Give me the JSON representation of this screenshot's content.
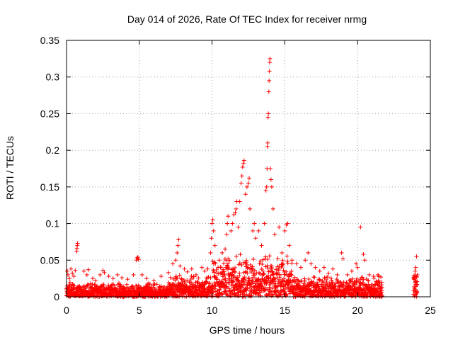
{
  "chart_data": {
    "type": "scatter",
    "title": "Day 014 of 2026, Rate Of TEC Index for receiver nrmg",
    "xlabel": "GPS time / hours",
    "ylabel": "ROTI / TECUs",
    "xlim": [
      0,
      25
    ],
    "ylim": [
      0,
      0.35
    ],
    "xticks": [
      0,
      5,
      10,
      15,
      20,
      25
    ],
    "xtick_labels": [
      "0",
      "5",
      "10",
      "15",
      "20",
      "25"
    ],
    "yticks": [
      0,
      0.05,
      0.1,
      0.15,
      0.2,
      0.25,
      0.3,
      0.35
    ],
    "ytick_labels": [
      "0",
      "0.05",
      "0.1",
      "0.15",
      "0.2",
      "0.25",
      "0.3",
      "0.35"
    ],
    "grid": true,
    "marker": "+",
    "color": "#ff0000",
    "series": [
      {
        "name": "ROTI",
        "points": [
          [
            0.05,
            0.035
          ],
          [
            0.1,
            0.03
          ],
          [
            0.2,
            0.025
          ],
          [
            0.3,
            0.038
          ],
          [
            0.4,
            0.032
          ],
          [
            0.5,
            0.028
          ],
          [
            0.6,
            0.036
          ],
          [
            0.7,
            0.062
          ],
          [
            0.72,
            0.066
          ],
          [
            0.74,
            0.07
          ],
          [
            0.76,
            0.073
          ],
          [
            1.2,
            0.035
          ],
          [
            1.4,
            0.03
          ],
          [
            1.5,
            0.037
          ],
          [
            1.8,
            0.025
          ],
          [
            2.0,
            0.022
          ],
          [
            2.3,
            0.03
          ],
          [
            2.5,
            0.036
          ],
          [
            2.6,
            0.033
          ],
          [
            2.9,
            0.028
          ],
          [
            3.2,
            0.025
          ],
          [
            3.5,
            0.03
          ],
          [
            3.8,
            0.026
          ],
          [
            4.2,
            0.024
          ],
          [
            4.6,
            0.03
          ],
          [
            4.8,
            0.05
          ],
          [
            4.85,
            0.053
          ],
          [
            4.9,
            0.054
          ],
          [
            4.95,
            0.051
          ],
          [
            5.2,
            0.03
          ],
          [
            5.5,
            0.025
          ],
          [
            6.0,
            0.022
          ],
          [
            6.5,
            0.028
          ],
          [
            7.0,
            0.033
          ],
          [
            7.3,
            0.045
          ],
          [
            7.5,
            0.05
          ],
          [
            7.6,
            0.06
          ],
          [
            7.65,
            0.07
          ],
          [
            7.7,
            0.078
          ],
          [
            7.8,
            0.042
          ],
          [
            8.1,
            0.038
          ],
          [
            8.3,
            0.034
          ],
          [
            8.6,
            0.038
          ],
          [
            8.9,
            0.03
          ],
          [
            9.3,
            0.04
          ],
          [
            9.5,
            0.035
          ],
          [
            9.7,
            0.038
          ],
          [
            9.9,
            0.06
          ],
          [
            9.95,
            0.08
          ],
          [
            10.0,
            0.1
          ],
          [
            10.05,
            0.105
          ],
          [
            10.1,
            0.09
          ],
          [
            10.2,
            0.07
          ],
          [
            10.5,
            0.05
          ],
          [
            10.7,
            0.06
          ],
          [
            10.9,
            0.065
          ],
          [
            11.0,
            0.085
          ],
          [
            11.05,
            0.1
          ],
          [
            11.1,
            0.11
          ],
          [
            11.3,
            0.09
          ],
          [
            11.4,
            0.1
          ],
          [
            11.5,
            0.112
          ],
          [
            11.6,
            0.115
          ],
          [
            11.65,
            0.12
          ],
          [
            11.7,
            0.13
          ],
          [
            11.8,
            0.095
          ],
          [
            11.9,
            0.13
          ],
          [
            12.0,
            0.155
          ],
          [
            12.05,
            0.165
          ],
          [
            12.1,
            0.177
          ],
          [
            12.15,
            0.182
          ],
          [
            12.2,
            0.186
          ],
          [
            12.3,
            0.14
          ],
          [
            12.4,
            0.15
          ],
          [
            12.5,
            0.155
          ],
          [
            12.55,
            0.162
          ],
          [
            12.6,
            0.12
          ],
          [
            12.8,
            0.09
          ],
          [
            12.9,
            0.1
          ],
          [
            13.0,
            0.08
          ],
          [
            13.2,
            0.09
          ],
          [
            13.4,
            0.07
          ],
          [
            13.6,
            0.1
          ],
          [
            13.7,
            0.145
          ],
          [
            13.75,
            0.15
          ],
          [
            13.78,
            0.175
          ],
          [
            13.8,
            0.205
          ],
          [
            13.82,
            0.21
          ],
          [
            13.85,
            0.245
          ],
          [
            13.87,
            0.25
          ],
          [
            13.9,
            0.28
          ],
          [
            13.92,
            0.295
          ],
          [
            13.94,
            0.308
          ],
          [
            13.96,
            0.32
          ],
          [
            13.98,
            0.325
          ],
          [
            14.0,
            0.175
          ],
          [
            14.05,
            0.16
          ],
          [
            14.1,
            0.15
          ],
          [
            14.2,
            0.12
          ],
          [
            14.3,
            0.085
          ],
          [
            14.6,
            0.095
          ],
          [
            14.8,
            0.06
          ],
          [
            15.0,
            0.09
          ],
          [
            15.1,
            0.098
          ],
          [
            15.2,
            0.1
          ],
          [
            15.3,
            0.07
          ],
          [
            15.5,
            0.05
          ],
          [
            15.8,
            0.045
          ],
          [
            16.1,
            0.04
          ],
          [
            16.4,
            0.05
          ],
          [
            16.6,
            0.06
          ],
          [
            16.8,
            0.045
          ],
          [
            17.1,
            0.04
          ],
          [
            17.4,
            0.035
          ],
          [
            17.7,
            0.04
          ],
          [
            18.0,
            0.032
          ],
          [
            18.3,
            0.038
          ],
          [
            18.6,
            0.03
          ],
          [
            18.9,
            0.06
          ],
          [
            19.0,
            0.052
          ],
          [
            19.3,
            0.03
          ],
          [
            19.6,
            0.035
          ],
          [
            19.9,
            0.045
          ],
          [
            20.0,
            0.04
          ],
          [
            20.2,
            0.095
          ],
          [
            20.4,
            0.058
          ],
          [
            20.5,
            0.05
          ],
          [
            20.8,
            0.03
          ],
          [
            21.1,
            0.028
          ],
          [
            21.4,
            0.03
          ],
          [
            21.6,
            0.027
          ],
          [
            23.9,
            0.025
          ],
          [
            23.95,
            0.035
          ],
          [
            24.0,
            0.04
          ],
          [
            24.05,
            0.055
          ],
          [
            24.1,
            0.03
          ]
        ]
      }
    ]
  }
}
